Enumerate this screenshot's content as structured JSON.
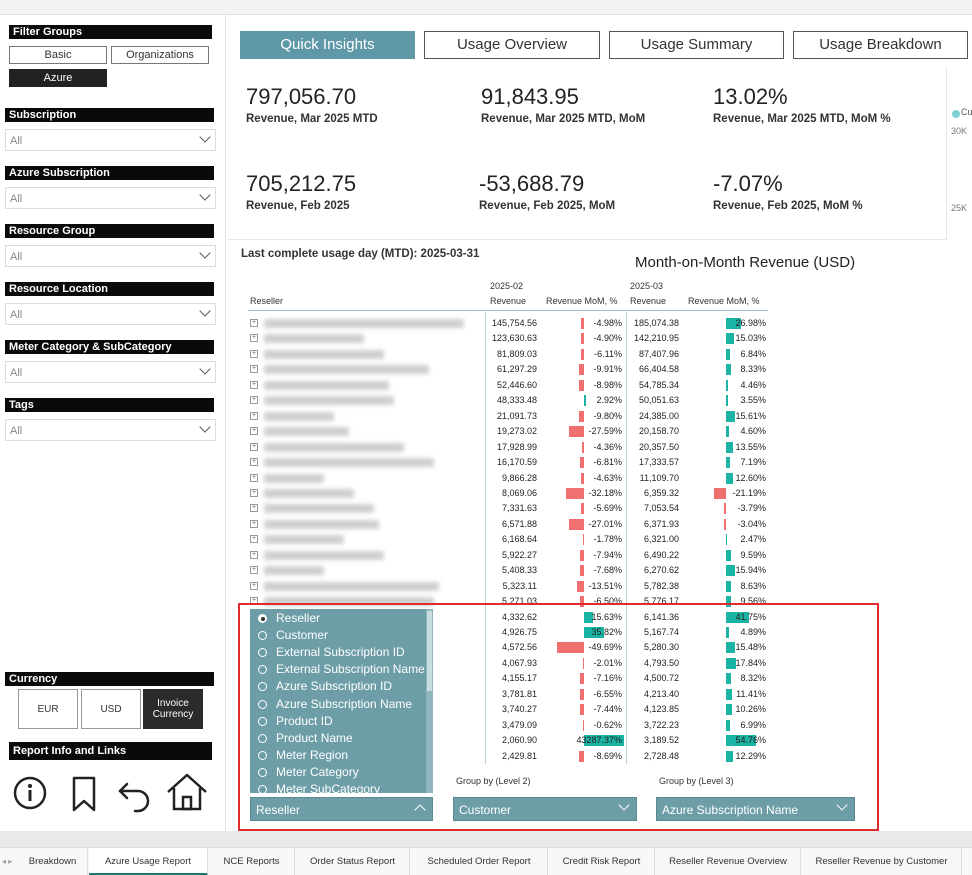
{
  "sidebar": {
    "filter_groups": {
      "title": "Filter Groups",
      "buttons": [
        "Basic",
        "Organizations",
        "Azure"
      ],
      "active": "Azure"
    },
    "filters": [
      {
        "label": "Subscription",
        "value": "All"
      },
      {
        "label": "Azure Subscription",
        "value": "All"
      },
      {
        "label": "Resource Group",
        "value": "All"
      },
      {
        "label": "Resource Location",
        "value": "All"
      },
      {
        "label": "Meter Category & SubCategory",
        "value": "All"
      },
      {
        "label": "Tags",
        "value": "All"
      }
    ],
    "currency": {
      "title": "Currency",
      "buttons": [
        "EUR",
        "USD",
        "Invoice Currency"
      ],
      "active": "Invoice Currency"
    },
    "report_info": {
      "title": "Report Info and Links",
      "icons": [
        "info-icon",
        "bookmark-icon",
        "back-arrow-icon",
        "home-icon"
      ]
    }
  },
  "tabs": [
    "Quick Insights",
    "Usage Overview",
    "Usage Summary",
    "Usage Breakdown"
  ],
  "active_tab": "Quick Insights",
  "kpis": [
    {
      "value": "797,056.70",
      "label": "Revenue, Mar 2025 MTD"
    },
    {
      "value": "91,843.95",
      "label": "Revenue, Mar 2025 MTD, MoM"
    },
    {
      "value": "13.02%",
      "label": "Revenue, Mar 2025 MTD, MoM %"
    },
    {
      "value": "705,212.75",
      "label": "Revenue, Feb 2025"
    },
    {
      "value": "-53,688.79",
      "label": "Revenue, Feb 2025, MoM"
    },
    {
      "value": "-7.07%",
      "label": "Revenue, Feb 2025, MoM %"
    }
  ],
  "mini_chart": {
    "legend": "Cu",
    "ticks": [
      "30K",
      "25K"
    ],
    "legend_color": "#7fd0d0"
  },
  "usage_day": "Last complete usage day (MTD): 2025-03-31",
  "table": {
    "title": "Month-on-Month Revenue (USD)",
    "col_reseller": "Reseller",
    "period1": "2025-02",
    "period2": "2025-03",
    "col_revenue": "Revenue",
    "col_mom": "Revenue MoM, %",
    "colors": {
      "positive": "#1bb3a4",
      "negative": "#f07070"
    },
    "rows": [
      {
        "w": 200,
        "r1": "145,754.56",
        "m1": "-4.98%",
        "v1": -4.98,
        "r2": "185,074.38",
        "m2": "26.98%",
        "v2": 26.98
      },
      {
        "w": 100,
        "r1": "123,630.63",
        "m1": "-4.90%",
        "v1": -4.9,
        "r2": "142,210.95",
        "m2": "15.03%",
        "v2": 15.03
      },
      {
        "w": 120,
        "r1": "81,809.03",
        "m1": "-6.11%",
        "v1": -6.11,
        "r2": "87,407.96",
        "m2": "6.84%",
        "v2": 6.84
      },
      {
        "w": 165,
        "r1": "61,297.29",
        "m1": "-9.91%",
        "v1": -9.91,
        "r2": "66,404.58",
        "m2": "8.33%",
        "v2": 8.33
      },
      {
        "w": 125,
        "r1": "52,446.60",
        "m1": "-8.98%",
        "v1": -8.98,
        "r2": "54,785.34",
        "m2": "4.46%",
        "v2": 4.46
      },
      {
        "w": 130,
        "r1": "48,333.48",
        "m1": "2.92%",
        "v1": 2.92,
        "r2": "50,051.63",
        "m2": "3.55%",
        "v2": 3.55
      },
      {
        "w": 70,
        "r1": "21,091.73",
        "m1": "-9.80%",
        "v1": -9.8,
        "r2": "24,385.00",
        "m2": "15.61%",
        "v2": 15.61
      },
      {
        "w": 85,
        "r1": "19,273.02",
        "m1": "-27.59%",
        "v1": -27.59,
        "r2": "20,158.70",
        "m2": "4.60%",
        "v2": 4.6
      },
      {
        "w": 140,
        "r1": "17,928.99",
        "m1": "-4.36%",
        "v1": -4.36,
        "r2": "20,357.50",
        "m2": "13.55%",
        "v2": 13.55
      },
      {
        "w": 170,
        "r1": "16,170.59",
        "m1": "-6.81%",
        "v1": -6.81,
        "r2": "17,333.57",
        "m2": "7.19%",
        "v2": 7.19
      },
      {
        "w": 60,
        "r1": "9,866.28",
        "m1": "-4.63%",
        "v1": -4.63,
        "r2": "11,109.70",
        "m2": "12.60%",
        "v2": 12.6
      },
      {
        "w": 90,
        "r1": "8,069.06",
        "m1": "-32.18%",
        "v1": -32.18,
        "r2": "6,359.32",
        "m2": "-21.19%",
        "v2": -21.19
      },
      {
        "w": 110,
        "r1": "7,331.63",
        "m1": "-5.69%",
        "v1": -5.69,
        "r2": "7,053.54",
        "m2": "-3.79%",
        "v2": -3.79
      },
      {
        "w": 115,
        "r1": "6,571.88",
        "m1": "-27.01%",
        "v1": -27.01,
        "r2": "6,371.93",
        "m2": "-3.04%",
        "v2": -3.04
      },
      {
        "w": 80,
        "r1": "6,168.64",
        "m1": "-1.78%",
        "v1": -1.78,
        "r2": "6,321.00",
        "m2": "2.47%",
        "v2": 2.47
      },
      {
        "w": 120,
        "r1": "5,922.27",
        "m1": "-7.94%",
        "v1": -7.94,
        "r2": "6,490.22",
        "m2": "9.59%",
        "v2": 9.59
      },
      {
        "w": 60,
        "r1": "5,408.33",
        "m1": "-7.68%",
        "v1": -7.68,
        "r2": "6,270.62",
        "m2": "15.94%",
        "v2": 15.94
      },
      {
        "w": 175,
        "r1": "5,323.11",
        "m1": "-13.51%",
        "v1": -13.51,
        "r2": "5,782.38",
        "m2": "8.63%",
        "v2": 8.63
      },
      {
        "w": 170,
        "r1": "5,271.03",
        "m1": "-6.50%",
        "v1": -6.5,
        "r2": "5,776.17",
        "m2": "9.56%",
        "v2": 9.56
      },
      {
        "w": 0,
        "r1": "4,332.62",
        "m1": "15.63%",
        "v1": 15.63,
        "r2": "6,141.36",
        "m2": "41.75%",
        "v2": 41.75
      },
      {
        "w": 0,
        "r1": "4,926.75",
        "m1": "35.82%",
        "v1": 35.82,
        "r2": "5,167.74",
        "m2": "4.89%",
        "v2": 4.89
      },
      {
        "w": 0,
        "r1": "4,572.56",
        "m1": "-49.69%",
        "v1": -49.69,
        "r2": "5,280.30",
        "m2": "15.48%",
        "v2": 15.48
      },
      {
        "w": 0,
        "r1": "4,067.93",
        "m1": "-2.01%",
        "v1": -2.01,
        "r2": "4,793.50",
        "m2": "17.84%",
        "v2": 17.84
      },
      {
        "w": 0,
        "r1": "4,155.17",
        "m1": "-7.16%",
        "v1": -7.16,
        "r2": "4,500.72",
        "m2": "8.32%",
        "v2": 8.32
      },
      {
        "w": 0,
        "r1": "3,781.81",
        "m1": "-6.55%",
        "v1": -6.55,
        "r2": "4,213.40",
        "m2": "11.41%",
        "v2": 11.41
      },
      {
        "w": 0,
        "r1": "3,740.27",
        "m1": "-7.44%",
        "v1": -7.44,
        "r2": "4,123.85",
        "m2": "10.26%",
        "v2": 10.26
      },
      {
        "w": 0,
        "r1": "3,479.09",
        "m1": "-0.62%",
        "v1": -0.62,
        "r2": "3,722.23",
        "m2": "6.99%",
        "v2": 6.99
      },
      {
        "w": 0,
        "r1": "2,060.90",
        "m1": "43287.37%",
        "v1": 43287.37,
        "r2": "3,189.52",
        "m2": "54.76%",
        "v2": 54.76
      },
      {
        "w": 0,
        "r1": "2,429.81",
        "m1": "-8.69%",
        "v1": -8.69,
        "r2": "2,728.48",
        "m2": "12.29%",
        "v2": 12.29
      }
    ]
  },
  "group_by": {
    "list_items": [
      "Reseller",
      "Customer",
      "External Subscription ID",
      "External Subscription Name",
      "Azure Subscription ID",
      "Azure Subscription Name",
      "Product ID",
      "Product Name",
      "Meter Region",
      "Meter Category",
      "Meter SubCategory"
    ],
    "selected": "Reseller",
    "level1_value": "Reseller",
    "level2_label": "Group by (Level 2)",
    "level2_value": "Customer",
    "level3_label": "Group by (Level 3)",
    "level3_value": "Azure Subscription Name"
  },
  "bottom_tabs": [
    "Breakdown",
    "Azure Usage Report",
    "NCE Reports",
    "Order Status Report",
    "Scheduled Order Report",
    "Credit Risk Report",
    "Reseller Revenue Overview",
    "Reseller Revenue by Customer"
  ],
  "active_bottom_tab": "Azure Usage Report"
}
